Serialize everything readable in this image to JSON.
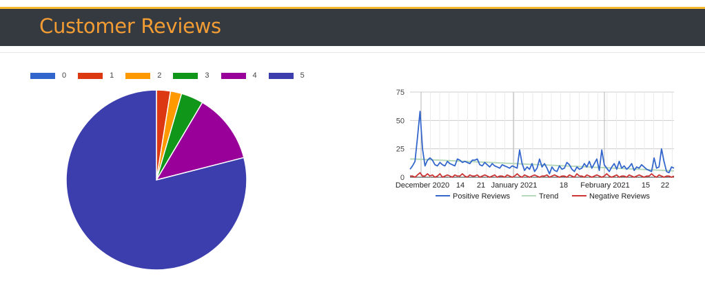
{
  "header": {
    "title": "Customer Reviews",
    "accent": "#f5b82e",
    "title_color": "#f39c34",
    "background": "#343a40"
  },
  "pie_legend": [
    {
      "label": "0",
      "color": "#3366cc"
    },
    {
      "label": "1",
      "color": "#dc3912"
    },
    {
      "label": "2",
      "color": "#ff9900"
    },
    {
      "label": "3",
      "color": "#109618"
    },
    {
      "label": "4",
      "color": "#990099"
    },
    {
      "label": "5",
      "color": "#3b3eac"
    }
  ],
  "chart_data": [
    {
      "type": "pie",
      "categories": [
        "0",
        "1",
        "2",
        "3",
        "4",
        "5"
      ],
      "values": [
        0,
        2.5,
        2,
        4,
        12.5,
        79
      ],
      "colors": [
        "#3366cc",
        "#dc3912",
        "#ff9900",
        "#109618",
        "#990099",
        "#3b3eac"
      ],
      "legend": "top"
    },
    {
      "type": "line",
      "ylim": [
        0,
        75
      ],
      "yticks": [
        0,
        25,
        50,
        75
      ],
      "x_tick_labels": [
        "December 2020",
        "14",
        "21",
        "January 2021",
        "18",
        "February 2021",
        "15",
        "22"
      ],
      "series": [
        {
          "name": "Positive Reviews",
          "color": "#3366cc",
          "values": [
            7,
            10,
            14,
            35,
            58,
            25,
            10,
            15,
            17,
            15,
            11,
            10,
            13,
            11,
            10,
            14,
            12,
            11,
            10,
            16,
            15,
            13,
            14,
            13,
            12,
            15,
            15,
            16,
            11,
            10,
            13,
            11,
            9,
            12,
            10,
            9,
            8,
            11,
            10,
            9,
            8,
            10,
            9,
            8,
            24,
            12,
            6,
            9,
            7,
            12,
            5,
            8,
            16,
            9,
            12,
            8,
            3,
            9,
            6,
            5,
            10,
            7,
            8,
            13,
            11,
            7,
            5,
            9,
            7,
            8,
            12,
            9,
            14,
            8,
            12,
            16,
            6,
            24,
            11,
            8,
            5,
            9,
            12,
            7,
            14,
            8,
            10,
            7,
            9,
            12,
            6,
            9,
            8,
            11,
            9,
            7,
            6,
            5,
            17,
            8,
            9,
            25,
            14,
            5,
            4,
            9,
            8
          ]
        },
        {
          "name": "Trend",
          "color": "#b6d7b8",
          "values": [
            16,
            16,
            16,
            15.9,
            15.8,
            15.7,
            15.6,
            15.5,
            15.4,
            15.3,
            15.2,
            15.1,
            15,
            14.9,
            14.8,
            14.7,
            14.6,
            14.5,
            14.4,
            14.3,
            14.2,
            14.1,
            14,
            13.9,
            13.8,
            13.7,
            13.6,
            13.5,
            13.4,
            13.3,
            13.2,
            13.1,
            13,
            12.9,
            12.8,
            12.7,
            12.6,
            12.5,
            12.4,
            12.3,
            12.2,
            12.1,
            12,
            11.9,
            11.8,
            11.7,
            11.6,
            11.5,
            11.4,
            11.3,
            11.2,
            11.1,
            11,
            10.9,
            10.8,
            10.7,
            10.6,
            10.5,
            10.4,
            10.3,
            10.2,
            10.1,
            10,
            9.9,
            9.8,
            9.7,
            9.6,
            9.5,
            9.4,
            9.3,
            9.2,
            9.1,
            9,
            8.9,
            8.8,
            8.7,
            8.6,
            8.5,
            8.4,
            8.3,
            8.2,
            8.1,
            8,
            7.9,
            7.8,
            7.7,
            7.6,
            7.5,
            7.4,
            7.3,
            7.2,
            7.1,
            7,
            6.9,
            6.8,
            6.7,
            6.6,
            6.5,
            6.4,
            6.3,
            6.2,
            6.1,
            6,
            5.9,
            5.8,
            5.7,
            5.6
          ]
        },
        {
          "name": "Negative Reviews",
          "color": "#cc3333",
          "values": [
            1,
            1,
            0,
            2,
            4,
            1,
            1,
            3,
            1,
            2,
            0,
            1,
            3,
            0,
            1,
            2,
            1,
            0,
            2,
            1,
            1,
            3,
            1,
            0,
            2,
            1,
            1,
            2,
            0,
            1,
            2,
            1,
            0,
            1,
            2,
            0,
            1,
            1,
            0,
            2,
            1,
            0,
            1,
            3,
            1,
            0,
            2,
            1,
            0,
            1,
            2,
            1,
            0,
            1,
            1,
            2,
            0,
            1,
            2,
            1,
            0,
            1,
            1,
            0,
            2,
            1,
            0,
            3,
            1,
            1,
            0,
            2,
            1,
            0,
            1,
            2,
            1,
            0,
            1,
            3,
            1,
            0,
            1,
            2,
            0,
            1,
            1,
            0,
            2,
            1,
            0,
            1,
            2,
            1,
            0,
            1,
            1,
            3,
            1,
            0,
            2,
            1,
            0,
            1,
            1,
            0,
            1
          ]
        }
      ],
      "grid": true,
      "legend": "bottom"
    }
  ]
}
